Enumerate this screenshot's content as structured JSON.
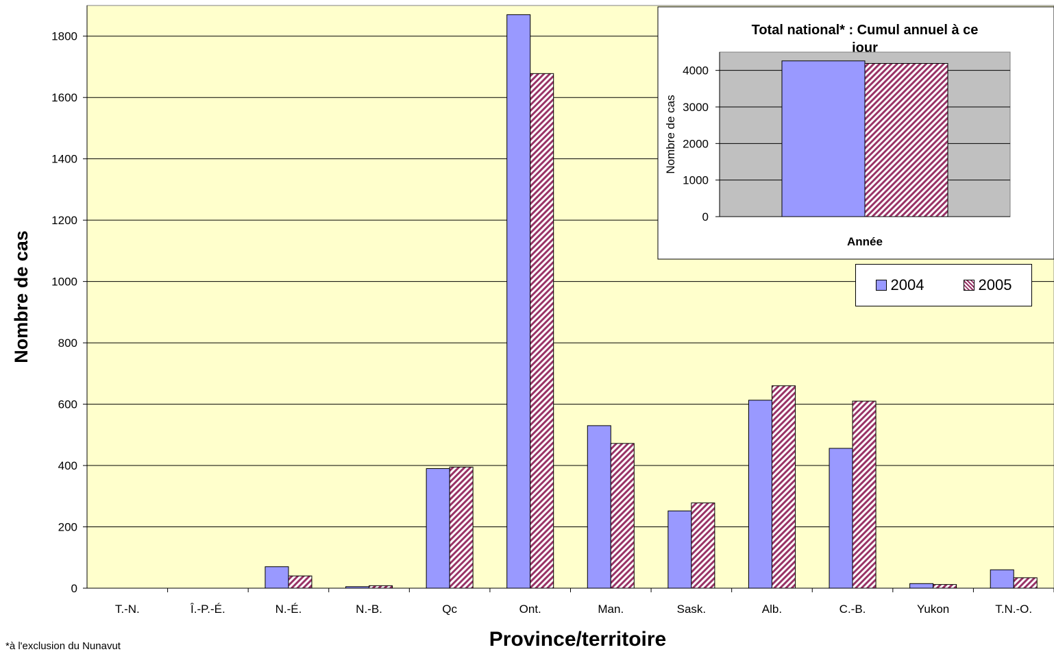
{
  "chart_data": [
    {
      "type": "bar",
      "title": "",
      "xlabel": "Province/territoire",
      "ylabel": "Nombre de cas",
      "ylim": [
        0,
        1900
      ],
      "yticks": [
        0,
        200,
        400,
        600,
        800,
        1000,
        1200,
        1400,
        1600,
        1800
      ],
      "grid": "horizontal",
      "background": "#FFFFCC",
      "categories": [
        "T.-N.",
        "Î.-P.-É.",
        "N.-É.",
        "N.-B.",
        "Qc",
        "Ont.",
        "Man.",
        "Sask.",
        "Alb.",
        "C.-B.",
        "Yukon",
        "T.N.-O."
      ],
      "series": [
        {
          "name": "2004",
          "values": [
            0,
            0,
            70,
            5,
            390,
            1870,
            530,
            252,
            613,
            456,
            15,
            60
          ],
          "color": "#9999FF"
        },
        {
          "name": "2005",
          "values": [
            0,
            0,
            40,
            8,
            395,
            1678,
            472,
            278,
            660,
            610,
            12,
            34
          ],
          "color": "#993366",
          "pattern": "diagonal-stripes"
        }
      ],
      "legend": {
        "placement": "right",
        "items": [
          "2004",
          "2005"
        ]
      }
    },
    {
      "type": "bar",
      "title": "Total national* : Cumul annuel à ce jour",
      "xlabel": "Année",
      "ylabel": "Nombre de cas",
      "ylim": [
        0,
        4500
      ],
      "yticks": [
        0,
        1000,
        2000,
        3000,
        4000
      ],
      "grid": "horizontal",
      "background": "#C0C0C0",
      "categories": [
        ""
      ],
      "series": [
        {
          "name": "2004",
          "values": [
            4260
          ],
          "color": "#9999FF"
        },
        {
          "name": "2005",
          "values": [
            4190
          ],
          "color": "#993366",
          "pattern": "diagonal-stripes"
        }
      ]
    }
  ],
  "footnote": "*à l'exclusion du Nunavut"
}
